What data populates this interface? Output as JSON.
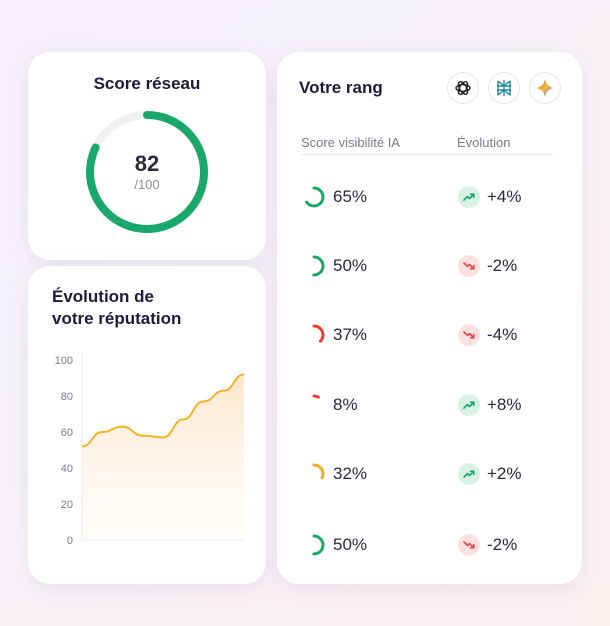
{
  "score": {
    "title": "Score réseau",
    "value": "82",
    "max_label": "/100",
    "fraction": 0.82,
    "color": "#1aa86a"
  },
  "reputation": {
    "title_line1": "Évolution de",
    "title_line2": "votre réputation",
    "chart_data": {
      "type": "area",
      "title": "",
      "ylim": [
        0,
        100
      ],
      "yticks": [
        "100",
        "80",
        "60",
        "40",
        "20",
        "0"
      ],
      "grid": false,
      "x": [
        0,
        1,
        2,
        3,
        4,
        5,
        6,
        7,
        8
      ],
      "values": [
        52,
        60,
        63,
        58,
        57,
        67,
        77,
        83,
        92
      ],
      "line_color": "#f0b429",
      "fill_color": "#fde5c8"
    }
  },
  "rank": {
    "title": "Votre rang",
    "icons": [
      "openai-icon",
      "perplexity-icon",
      "gemini-icon"
    ],
    "col_score": "Score visibilité IA",
    "col_evolution": "Évolution",
    "rows": [
      {
        "pct": "65%",
        "fraction": 0.65,
        "ring_color": "#1aa86a",
        "delta": "+4%",
        "trend": "up"
      },
      {
        "pct": "50%",
        "fraction": 0.5,
        "ring_color": "#1aa86a",
        "delta": "-2%",
        "trend": "down"
      },
      {
        "pct": "37%",
        "fraction": 0.37,
        "ring_color": "#ef3b30",
        "delta": "-4%",
        "trend": "down"
      },
      {
        "pct": "8%",
        "fraction": 0.08,
        "ring_color": "#ef3b30",
        "delta": "+8%",
        "trend": "up"
      },
      {
        "pct": "32%",
        "fraction": 0.32,
        "ring_color": "#f2b01e",
        "delta": "+2%",
        "trend": "up"
      },
      {
        "pct": "50%",
        "fraction": 0.5,
        "ring_color": "#1aa86a",
        "delta": "-2%",
        "trend": "down"
      }
    ],
    "up_bg": "#d8f3e6",
    "up_color": "#1aa86a",
    "down_bg": "#fde0e0",
    "down_color": "#e5484d"
  }
}
